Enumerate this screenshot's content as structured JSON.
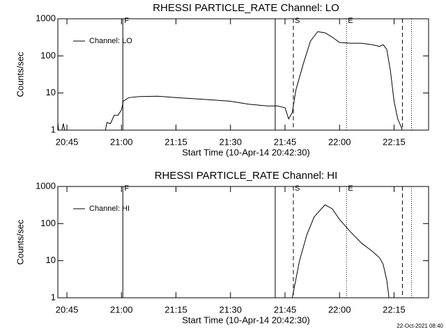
{
  "chart_data": [
    {
      "type": "line",
      "title": "RHESSI PARTICLE_RATE Channel: LO",
      "x_label": "Start Time (10-Apr-14 20:42:30)",
      "y_label": "Counts/sec",
      "log_y": true,
      "xlim": [
        "20:42:30",
        "22:24:30"
      ],
      "ylim": [
        1,
        1000
      ],
      "xticks": [
        "20:45",
        "21:00",
        "21:15",
        "21:30",
        "21:45",
        "22:00",
        "22:15"
      ],
      "yticks": [
        1,
        10,
        100,
        1000
      ],
      "legend": "top-left",
      "x": [
        "20:42:30",
        "20:43",
        "20:44",
        "20:45",
        "20:55",
        "20:56",
        "20:57",
        "20:58",
        "20:59",
        "21:00",
        "21:00:30",
        "21:02",
        "21:05",
        "21:10",
        "21:15",
        "21:20",
        "21:25",
        "21:30",
        "21:35",
        "21:40",
        "21:43",
        "21:45",
        "21:46",
        "21:47",
        "21:48",
        "21:50",
        "21:52",
        "21:54",
        "21:56",
        "21:58",
        "22:00",
        "22:03",
        "22:06",
        "22:09",
        "22:11",
        "22:12",
        "22:13",
        "22:14",
        "22:15",
        "22:16",
        "22:17",
        "22:18"
      ],
      "series": [
        {
          "name": "Channel: LO",
          "color": "#000000",
          "values": [
            1.6,
            0.5,
            1.5,
            0.5,
            0.5,
            1.6,
            1.5,
            2.5,
            2.5,
            3.5,
            6,
            7.5,
            8,
            8.2,
            7.5,
            7,
            6.5,
            6,
            5,
            4.5,
            4.5,
            4,
            2,
            3,
            12,
            60,
            250,
            450,
            420,
            320,
            230,
            220,
            220,
            200,
            180,
            200,
            150,
            40,
            6,
            2,
            1.2,
            0.5
          ]
        }
      ],
      "markers": [
        {
          "x": "21:00:23",
          "label": "F",
          "style": "solid"
        },
        {
          "x": "21:42:18",
          "style": "solid"
        },
        {
          "x": "21:47:18",
          "label": "S",
          "style": "dashed"
        },
        {
          "x": "22:01:55",
          "label": "E",
          "style": "dotted"
        },
        {
          "x": "22:17:18",
          "style": "dashed"
        },
        {
          "x": "22:19:48",
          "style": "dotted"
        }
      ]
    },
    {
      "type": "line",
      "title": "RHESSI PARTICLE_RATE Channel: HI",
      "x_label": "Start Time (10-Apr-14 20:42:30)",
      "y_label": "Counts/sec",
      "log_y": true,
      "xlim": [
        "20:42:30",
        "22:24:30"
      ],
      "ylim": [
        1,
        1000
      ],
      "xticks": [
        "20:45",
        "21:00",
        "21:15",
        "21:30",
        "21:45",
        "22:00",
        "22:15"
      ],
      "yticks": [
        1,
        10,
        100,
        1000
      ],
      "legend": "top-left",
      "x": [
        "21:46",
        "21:47",
        "21:49",
        "21:51",
        "21:53",
        "21:55",
        "21:56",
        "21:58",
        "22:00",
        "22:03",
        "22:06",
        "22:09",
        "22:11",
        "22:12",
        "22:13",
        "22:14"
      ],
      "series": [
        {
          "name": "Channel: HI",
          "color": "#000000",
          "values": [
            0.5,
            1,
            10,
            50,
            150,
            250,
            320,
            250,
            130,
            60,
            30,
            18,
            12,
            8,
            3,
            0.5
          ]
        }
      ],
      "markers": [
        {
          "x": "21:00:23",
          "label": "F",
          "style": "solid"
        },
        {
          "x": "21:42:18",
          "style": "solid"
        },
        {
          "x": "21:47:18",
          "label": "S",
          "style": "dashed"
        },
        {
          "x": "22:01:55",
          "label": "E",
          "style": "dotted"
        },
        {
          "x": "22:17:18",
          "style": "dashed"
        },
        {
          "x": "22:19:48",
          "style": "dotted"
        }
      ]
    }
  ],
  "footer": "22-Oct-2021 08:40"
}
